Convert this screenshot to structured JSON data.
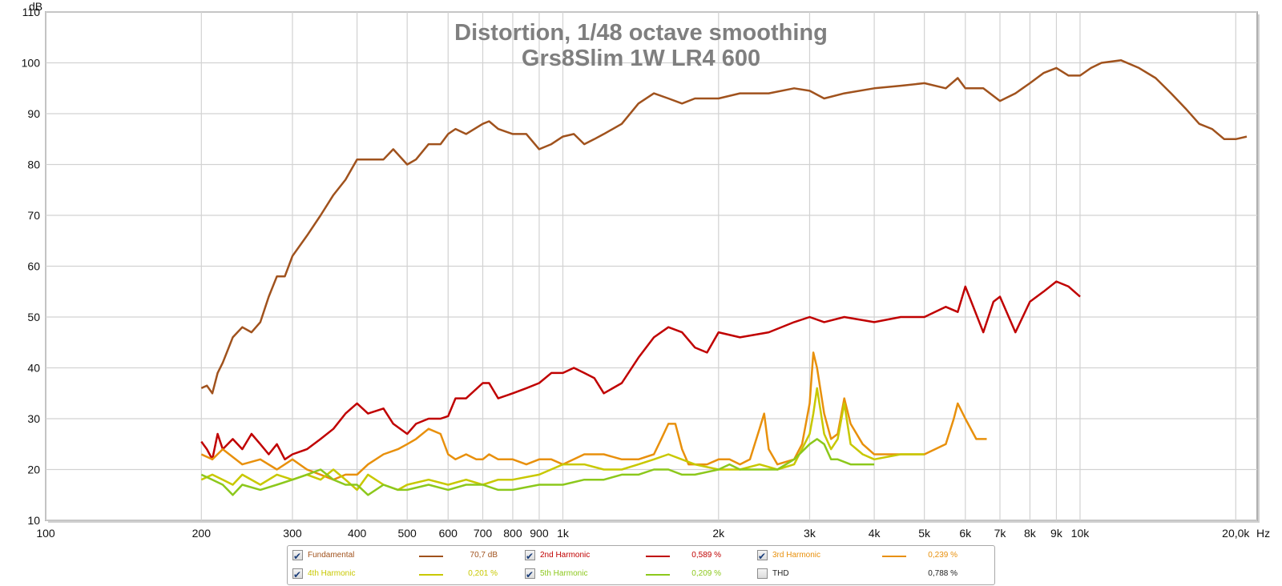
{
  "chart_data": {
    "type": "line",
    "title": "Distortion, 1/48 octave smoothing",
    "subtitle": "Grs8Slim 1W LR4 600",
    "xlabel": "",
    "ylabel": "dB",
    "x_unit": "Hz",
    "x_scale": "log",
    "xlim": [
      100,
      22000
    ],
    "ylim": [
      10,
      110
    ],
    "y_ticks": [
      "10",
      "20",
      "30",
      "40",
      "50",
      "60",
      "70",
      "80",
      "90",
      "100",
      "110"
    ],
    "x_ticks": [
      {
        "v": 100,
        "label": "100"
      },
      {
        "v": 200,
        "label": "200"
      },
      {
        "v": 300,
        "label": "300"
      },
      {
        "v": 400,
        "label": "400"
      },
      {
        "v": 500,
        "label": "500"
      },
      {
        "v": 600,
        "label": "600"
      },
      {
        "v": 700,
        "label": "700"
      },
      {
        "v": 800,
        "label": "800"
      },
      {
        "v": 900,
        "label": "900"
      },
      {
        "v": 1000,
        "label": "1k"
      },
      {
        "v": 2000,
        "label": "2k"
      },
      {
        "v": 3000,
        "label": "3k"
      },
      {
        "v": 4000,
        "label": "4k"
      },
      {
        "v": 5000,
        "label": "5k"
      },
      {
        "v": 6000,
        "label": "6k"
      },
      {
        "v": 7000,
        "label": "7k"
      },
      {
        "v": 8000,
        "label": "8k"
      },
      {
        "v": 9000,
        "label": "9k"
      },
      {
        "v": 10000,
        "label": "10k"
      },
      {
        "v": 20000,
        "label": "20,0k"
      }
    ],
    "x_unit_label": "Hz",
    "grid": true,
    "legend_position": "bottom",
    "series": [
      {
        "name": "Fundamental",
        "color": "#a0521d",
        "value_label": "70,7 dB",
        "x": [
          200,
          205,
          210,
          215,
          220,
          230,
          240,
          250,
          260,
          270,
          280,
          290,
          300,
          320,
          340,
          360,
          380,
          400,
          420,
          450,
          470,
          500,
          520,
          550,
          580,
          600,
          620,
          650,
          700,
          720,
          750,
          800,
          850,
          900,
          950,
          1000,
          1050,
          1100,
          1150,
          1200,
          1300,
          1400,
          1500,
          1600,
          1700,
          1800,
          2000,
          2200,
          2500,
          2800,
          3000,
          3200,
          3500,
          4000,
          4500,
          5000,
          5500,
          5800,
          6000,
          6500,
          7000,
          7500,
          8000,
          8500,
          9000,
          9500,
          10000,
          10500,
          11000,
          12000,
          13000,
          14000,
          15000,
          16000,
          17000,
          18000,
          19000,
          20000,
          21000
        ],
        "y": [
          36,
          36.5,
          35,
          39,
          41,
          46,
          48,
          47,
          49,
          54,
          58,
          58,
          62,
          66,
          70,
          74,
          77,
          81,
          81,
          81,
          83,
          80,
          81,
          84,
          84,
          86,
          87,
          86,
          88,
          88.5,
          87,
          86,
          86,
          83,
          84,
          85.5,
          86,
          84,
          85,
          86,
          88,
          92,
          94,
          93,
          92,
          93,
          93,
          94,
          94,
          95,
          94.5,
          93,
          94,
          95,
          95.5,
          96,
          95,
          97,
          95,
          95,
          92.5,
          94,
          96,
          98,
          99,
          97.5,
          97.5,
          99,
          100,
          100.5,
          99,
          97,
          94,
          91,
          88,
          87,
          85,
          85,
          85.5
        ]
      },
      {
        "name": "2nd Harmonic",
        "color": "#c00000",
        "value_label": "0,589 %",
        "x": [
          200,
          205,
          210,
          215,
          220,
          230,
          240,
          250,
          260,
          270,
          280,
          290,
          300,
          320,
          340,
          360,
          380,
          400,
          420,
          450,
          470,
          500,
          520,
          550,
          580,
          600,
          620,
          650,
          700,
          720,
          750,
          800,
          850,
          900,
          950,
          1000,
          1050,
          1100,
          1150,
          1200,
          1300,
          1400,
          1500,
          1600,
          1700,
          1800,
          1900,
          2000,
          2200,
          2500,
          2800,
          3000,
          3200,
          3500,
          4000,
          4500,
          5000,
          5500,
          5800,
          6000,
          6500,
          6800,
          7000,
          7500,
          8000,
          8500,
          9000,
          9500,
          10000
        ],
        "y": [
          25.5,
          24,
          22,
          27,
          24,
          26,
          24,
          27,
          25,
          23,
          25,
          22,
          23,
          24,
          26,
          28,
          31,
          33,
          31,
          32,
          29,
          27,
          29,
          30,
          30,
          30.5,
          34,
          34,
          37,
          37,
          34,
          35,
          36,
          37,
          39,
          39,
          40,
          39,
          38,
          35,
          37,
          42,
          46,
          48,
          47,
          44,
          43,
          47,
          46,
          47,
          49,
          50,
          49,
          50,
          49,
          50,
          50,
          52,
          51,
          56,
          47,
          53,
          54,
          47,
          53,
          55,
          57,
          56,
          54
        ]
      },
      {
        "name": "3rd Harmonic",
        "color": "#e8900c",
        "value_label": "0,239 %",
        "x": [
          200,
          210,
          220,
          240,
          260,
          280,
          300,
          320,
          340,
          360,
          380,
          400,
          420,
          450,
          480,
          500,
          520,
          550,
          580,
          600,
          620,
          650,
          680,
          700,
          720,
          750,
          800,
          850,
          900,
          950,
          1000,
          1100,
          1200,
          1300,
          1400,
          1500,
          1550,
          1600,
          1650,
          1700,
          1750,
          1800,
          1900,
          2000,
          2100,
          2200,
          2300,
          2400,
          2450,
          2500,
          2600,
          2800,
          2900,
          3000,
          3050,
          3100,
          3200,
          3300,
          3400,
          3500,
          3600,
          3800,
          4000,
          4500,
          5000,
          5500,
          5700,
          5800,
          6000,
          6300,
          6600
        ],
        "y": [
          23,
          22,
          24,
          21,
          22,
          20,
          22,
          20,
          19,
          18,
          19,
          19,
          21,
          23,
          24,
          25,
          26,
          28,
          27,
          23,
          22,
          23,
          22,
          22,
          23,
          22,
          22,
          21,
          22,
          22,
          21,
          23,
          23,
          22,
          22,
          23,
          26,
          29,
          29,
          24,
          21,
          21,
          21,
          22,
          22,
          21,
          22,
          28,
          31,
          24,
          21,
          22,
          25,
          33,
          43,
          40,
          31,
          26,
          27,
          34,
          29,
          25,
          23,
          23,
          23,
          25,
          30,
          33,
          30,
          26,
          26
        ]
      },
      {
        "name": "4th Harmonic",
        "color": "#c8c800",
        "value_label": "0,201 %",
        "x": [
          200,
          210,
          220,
          230,
          240,
          260,
          280,
          300,
          320,
          340,
          360,
          380,
          400,
          420,
          450,
          480,
          500,
          550,
          600,
          650,
          700,
          750,
          800,
          900,
          1000,
          1100,
          1200,
          1300,
          1400,
          1500,
          1600,
          1800,
          2000,
          2200,
          2400,
          2600,
          2800,
          3000,
          3050,
          3100,
          3200,
          3300,
          3400,
          3500,
          3600,
          3800,
          4000,
          4500,
          5000
        ],
        "y": [
          18,
          19,
          18,
          17,
          19,
          17,
          19,
          18,
          19,
          18,
          20,
          18,
          16,
          19,
          17,
          16,
          17,
          18,
          17,
          18,
          17,
          18,
          18,
          19,
          21,
          21,
          20,
          20,
          21,
          22,
          23,
          21,
          20,
          20,
          21,
          20,
          21,
          27,
          31,
          36,
          27,
          24,
          26,
          33,
          25,
          23,
          22,
          23,
          23
        ]
      },
      {
        "name": "5th Harmonic",
        "color": "#8cc81c",
        "value_label": "0,209 %",
        "x": [
          200,
          210,
          220,
          230,
          240,
          260,
          280,
          300,
          320,
          340,
          360,
          380,
          400,
          420,
          450,
          480,
          500,
          550,
          600,
          650,
          700,
          750,
          800,
          900,
          1000,
          1100,
          1200,
          1300,
          1400,
          1500,
          1600,
          1700,
          1800,
          2000,
          2100,
          2200,
          2400,
          2600,
          2800,
          3000,
          3100,
          3200,
          3300,
          3400,
          3600,
          3800,
          4000
        ],
        "y": [
          19,
          18,
          17,
          15,
          17,
          16,
          17,
          18,
          19,
          20,
          18,
          17,
          17,
          15,
          17,
          16,
          16,
          17,
          16,
          17,
          17,
          16,
          16,
          17,
          17,
          18,
          18,
          19,
          19,
          20,
          20,
          19,
          19,
          20,
          21,
          20,
          20,
          20,
          22,
          25,
          26,
          25,
          22,
          22,
          21,
          21,
          21
        ]
      }
    ],
    "thd": {
      "name": "THD",
      "value_label": "0,788 %",
      "checked": false
    }
  }
}
